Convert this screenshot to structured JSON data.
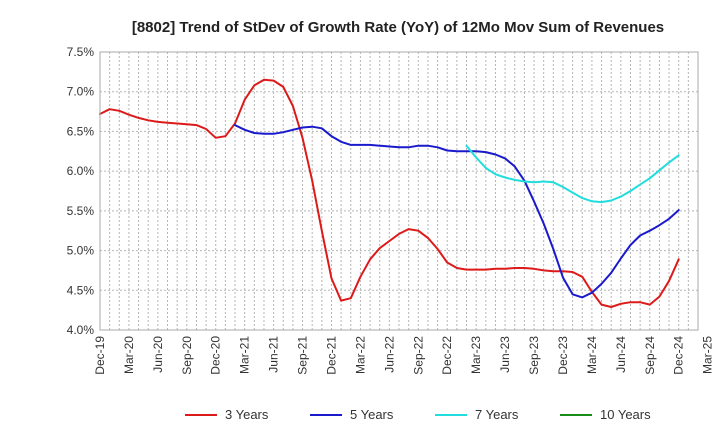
{
  "chart_data": {
    "type": "line",
    "title": "[8802]  Trend of StDev of Growth Rate (YoY) of 12Mo Mov Sum of Revenues",
    "xlabel": "",
    "ylabel": "",
    "ylim": [
      4.0,
      7.5
    ],
    "yticks": [
      4.0,
      4.5,
      5.0,
      5.5,
      6.0,
      6.5,
      7.0,
      7.5
    ],
    "ytick_labels": [
      "4.0%",
      "4.5%",
      "5.0%",
      "5.5%",
      "6.0%",
      "6.5%",
      "7.0%",
      "7.5%"
    ],
    "x_start": "Dec-19",
    "x_periods": 63,
    "xtick_labels": [
      "Dec-19",
      "Mar-20",
      "Jun-20",
      "Sep-20",
      "Dec-20",
      "Mar-21",
      "Jun-21",
      "Sep-21",
      "Dec-21",
      "Mar-22",
      "Jun-22",
      "Sep-22",
      "Dec-22",
      "Mar-23",
      "Jun-23",
      "Sep-23",
      "Dec-23",
      "Mar-24",
      "Jun-24",
      "Sep-24",
      "Dec-24",
      "Mar-25"
    ],
    "grid": true,
    "legend_position": "bottom",
    "series": [
      {
        "name": "3 Years",
        "color": "#dd1a1a",
        "start_index": 0,
        "values": [
          6.72,
          6.78,
          6.76,
          6.71,
          6.67,
          6.64,
          6.62,
          6.61,
          6.6,
          6.59,
          6.58,
          6.53,
          6.42,
          6.44,
          6.6,
          6.9,
          7.08,
          7.15,
          7.14,
          7.06,
          6.82,
          6.42,
          5.88,
          5.25,
          4.65,
          4.37,
          4.4,
          4.67,
          4.89,
          5.03,
          5.12,
          5.21,
          5.27,
          5.25,
          5.16,
          5.02,
          4.85,
          4.78,
          4.76,
          4.76,
          4.76,
          4.77,
          4.77,
          4.78,
          4.78,
          4.77,
          4.75,
          4.74,
          4.74,
          4.73,
          4.67,
          4.48,
          4.32,
          4.29,
          4.33,
          4.35,
          4.35,
          4.32,
          4.42,
          4.62,
          4.89
        ]
      },
      {
        "name": "5 Years",
        "color": "#1a1acc",
        "start_index": 14,
        "values": [
          6.58,
          6.52,
          6.48,
          6.47,
          6.47,
          6.49,
          6.52,
          6.55,
          6.56,
          6.54,
          6.44,
          6.37,
          6.33,
          6.33,
          6.33,
          6.32,
          6.31,
          6.3,
          6.3,
          6.32,
          6.32,
          6.3,
          6.26,
          6.25,
          6.25,
          6.25,
          6.24,
          6.21,
          6.16,
          6.06,
          5.88,
          5.62,
          5.34,
          5.02,
          4.66,
          4.45,
          4.41,
          4.47,
          4.58,
          4.72,
          4.9,
          5.07,
          5.19,
          5.25,
          5.32,
          5.4,
          5.51
        ]
      },
      {
        "name": "7 Years",
        "color": "#22dddd",
        "start_index": 38,
        "values": [
          6.32,
          6.17,
          6.04,
          5.96,
          5.92,
          5.89,
          5.87,
          5.86,
          5.87,
          5.86,
          5.8,
          5.73,
          5.66,
          5.62,
          5.61,
          5.63,
          5.68,
          5.75,
          5.83,
          5.91,
          6.01,
          6.11,
          6.2
        ]
      },
      {
        "name": "10 Years",
        "color": "#1a8c1a",
        "start_index": 0,
        "values": []
      }
    ]
  }
}
